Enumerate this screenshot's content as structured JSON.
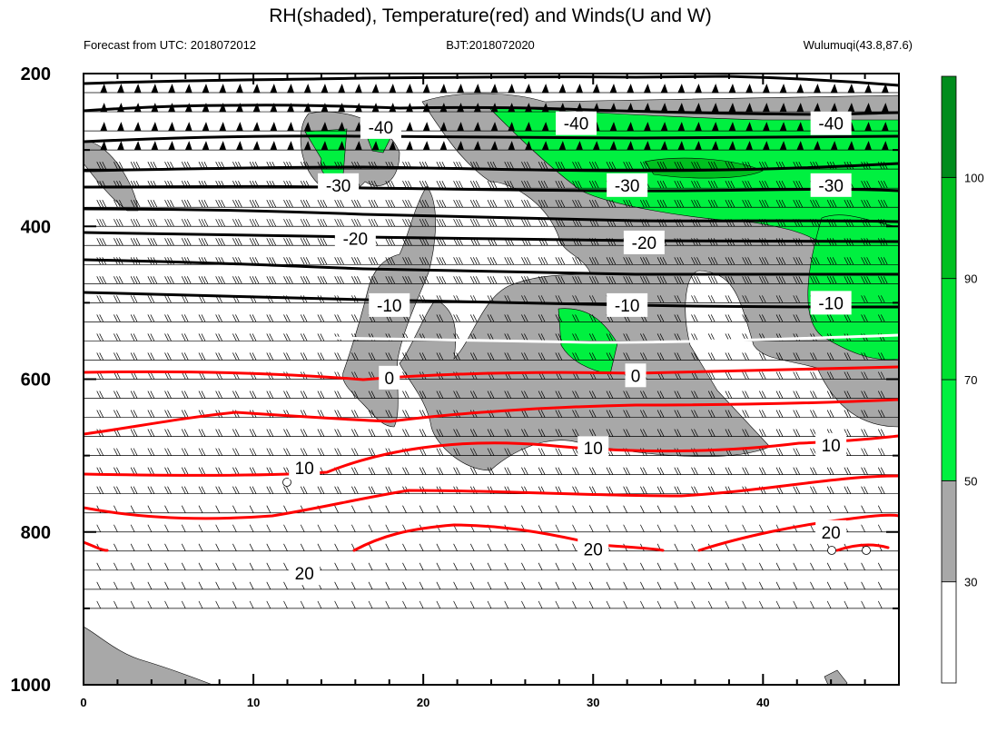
{
  "chart_data": {
    "type": "contour",
    "title": "RH(shaded), Temperature(red) and Winds(U and W)",
    "info_left": "Forecast from UTC: 2018072012",
    "info_center": "BJT:2018072020",
    "info_right": "Wulumuqi(43.8,87.6)",
    "x": {
      "ticks": [
        0,
        10,
        20,
        30,
        40
      ],
      "labels": [
        "0",
        "10",
        "20",
        "30",
        "40"
      ],
      "range": [
        0,
        48
      ]
    },
    "y": {
      "ticks": [
        200,
        400,
        600,
        800,
        1000
      ],
      "labels": [
        "200",
        "400",
        "600",
        "800",
        "1000"
      ],
      "range": [
        200,
        1000
      ],
      "inverted": true
    },
    "colorbar": {
      "labels": [
        "30",
        "50",
        "70",
        "90",
        "100"
      ],
      "colors": [
        "#ffffff",
        "#a8a8a8",
        "#00f040",
        "#00e030",
        "#00c020",
        "#008c1c"
      ]
    },
    "colors": {
      "grey": "#a8a8a8",
      "green": "#00f040",
      "dark_green": "#00c020",
      "red": "#ff0000",
      "black": "#000000",
      "white": "#ffffff"
    },
    "temperature_labels": [
      {
        "text": "-40",
        "x": 17.5,
        "y": 270
      },
      {
        "text": "-40",
        "x": 29.0,
        "y": 265
      },
      {
        "text": "-40",
        "x": 44.0,
        "y": 265
      },
      {
        "text": "-30",
        "x": 15.0,
        "y": 346
      },
      {
        "text": "-30",
        "x": 32.0,
        "y": 346
      },
      {
        "text": "-30",
        "x": 44.0,
        "y": 346
      },
      {
        "text": "-20",
        "x": 16.0,
        "y": 416
      },
      {
        "text": "-20",
        "x": 33.0,
        "y": 421
      },
      {
        "text": "-10",
        "x": 18.0,
        "y": 503
      },
      {
        "text": "-10",
        "x": 32.0,
        "y": 503
      },
      {
        "text": "-10",
        "x": 44.0,
        "y": 500
      },
      {
        "text": "0",
        "x": 18.0,
        "y": 598
      },
      {
        "text": "0",
        "x": 32.5,
        "y": 595
      },
      {
        "text": "10",
        "x": 13.0,
        "y": 716
      },
      {
        "text": "10",
        "x": 30.0,
        "y": 690
      },
      {
        "text": "10",
        "x": 44.0,
        "y": 686
      },
      {
        "text": "20",
        "x": 13.0,
        "y": 854
      },
      {
        "text": "20",
        "x": 30.0,
        "y": 822
      },
      {
        "text": "20",
        "x": 44.0,
        "y": 800
      }
    ]
  }
}
